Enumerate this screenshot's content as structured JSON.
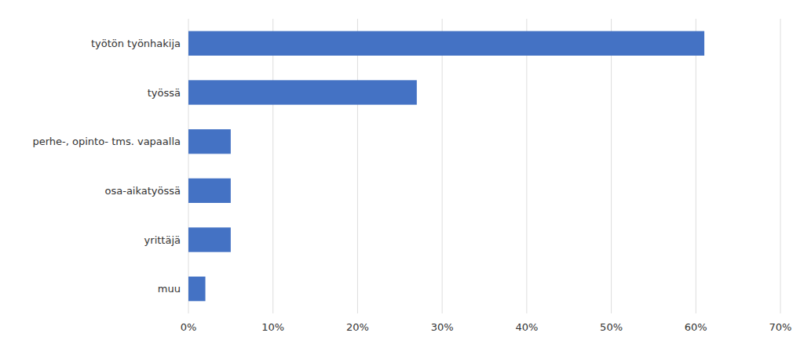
{
  "chart_data": {
    "type": "bar",
    "orientation": "horizontal",
    "categories": [
      "muu",
      "yrittäjä",
      "osa-aikatyössä",
      "perhe-, opinto- tms. vapaalla",
      "työssä",
      "työtön työnhakija"
    ],
    "values": [
      2,
      5,
      5,
      5,
      27,
      61
    ],
    "color": "#4472C4",
    "xlim": [
      0,
      70
    ],
    "xticks": [
      {
        "value": 0,
        "label": "0%"
      },
      {
        "value": 10,
        "label": "10%"
      },
      {
        "value": 20,
        "label": "20%"
      },
      {
        "value": 30,
        "label": "30%"
      },
      {
        "value": 40,
        "label": "40%"
      },
      {
        "value": 50,
        "label": "50%"
      },
      {
        "value": 60,
        "label": "60%"
      },
      {
        "value": 70,
        "label": "70%"
      }
    ],
    "grid": true
  }
}
